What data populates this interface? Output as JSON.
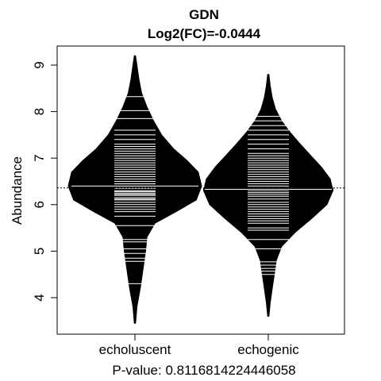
{
  "chart_data": {
    "type": "beanplot",
    "title": "GDN",
    "subtitle": "Log2(FC)=-0.0444",
    "xlabel": "P-value: 0.8116814224446058",
    "ylabel": "Abundance",
    "ylim": [
      3.3,
      9.4
    ],
    "yticks": [
      4,
      5,
      6,
      7,
      8,
      9
    ],
    "overall_mean_line": 6.36,
    "categories": [
      "echoluscent",
      "echogenic"
    ],
    "groups": [
      {
        "name": "echoluscent",
        "mean": 6.4,
        "range": [
          3.45,
          9.2
        ],
        "density": [
          [
            3.45,
            0.01
          ],
          [
            3.8,
            0.03
          ],
          [
            4.2,
            0.08
          ],
          [
            4.6,
            0.12
          ],
          [
            5.0,
            0.16
          ],
          [
            5.3,
            0.18
          ],
          [
            5.6,
            0.3
          ],
          [
            5.85,
            0.62
          ],
          [
            6.1,
            0.92
          ],
          [
            6.4,
            1.0
          ],
          [
            6.7,
            0.95
          ],
          [
            6.95,
            0.78
          ],
          [
            7.2,
            0.58
          ],
          [
            7.5,
            0.4
          ],
          [
            7.8,
            0.28
          ],
          [
            8.1,
            0.18
          ],
          [
            8.4,
            0.1
          ],
          [
            8.7,
            0.06
          ],
          [
            9.0,
            0.03
          ],
          [
            9.2,
            0.01
          ]
        ],
        "points": [
          4.3,
          4.78,
          4.85,
          4.95,
          5.05,
          5.2,
          5.25,
          5.55,
          5.75,
          5.85,
          5.9,
          5.95,
          6.0,
          6.05,
          6.1,
          6.12,
          6.15,
          6.2,
          6.22,
          6.25,
          6.28,
          6.3,
          6.35,
          6.38,
          6.42,
          6.45,
          6.5,
          6.55,
          6.6,
          6.65,
          6.7,
          6.75,
          6.8,
          6.85,
          6.9,
          6.95,
          7.0,
          7.05,
          7.1,
          7.15,
          7.2,
          7.25,
          7.3,
          7.4,
          7.5,
          7.6,
          7.85,
          8.02,
          8.32
        ]
      },
      {
        "name": "echogenic",
        "mean": 6.33,
        "range": [
          3.6,
          8.8
        ],
        "density": [
          [
            3.6,
            0.01
          ],
          [
            3.9,
            0.03
          ],
          [
            4.2,
            0.06
          ],
          [
            4.5,
            0.09
          ],
          [
            4.8,
            0.12
          ],
          [
            5.1,
            0.2
          ],
          [
            5.4,
            0.4
          ],
          [
            5.7,
            0.65
          ],
          [
            6.0,
            0.88
          ],
          [
            6.3,
            0.97
          ],
          [
            6.55,
            0.93
          ],
          [
            6.8,
            0.8
          ],
          [
            7.05,
            0.64
          ],
          [
            7.3,
            0.48
          ],
          [
            7.55,
            0.33
          ],
          [
            7.8,
            0.2
          ],
          [
            8.05,
            0.11
          ],
          [
            8.3,
            0.06
          ],
          [
            8.55,
            0.03
          ],
          [
            8.8,
            0.01
          ]
        ],
        "points": [
          4.5,
          4.57,
          4.63,
          4.7,
          4.77,
          5.05,
          5.25,
          5.45,
          5.5,
          5.6,
          5.65,
          5.7,
          5.75,
          5.8,
          5.85,
          5.9,
          5.95,
          6.0,
          6.05,
          6.12,
          6.18,
          6.22,
          6.26,
          6.3,
          6.35,
          6.4,
          6.45,
          6.5,
          6.55,
          6.6,
          6.65,
          6.7,
          6.75,
          6.8,
          6.85,
          6.9,
          6.95,
          7.0,
          7.05,
          7.1,
          7.2,
          7.3,
          7.4,
          7.5,
          7.6,
          7.7,
          7.8,
          7.9
        ]
      }
    ],
    "colors": {
      "bean": "#000000",
      "points": "#ffffff",
      "axis": "#000000",
      "background": "#ffffff"
    }
  }
}
